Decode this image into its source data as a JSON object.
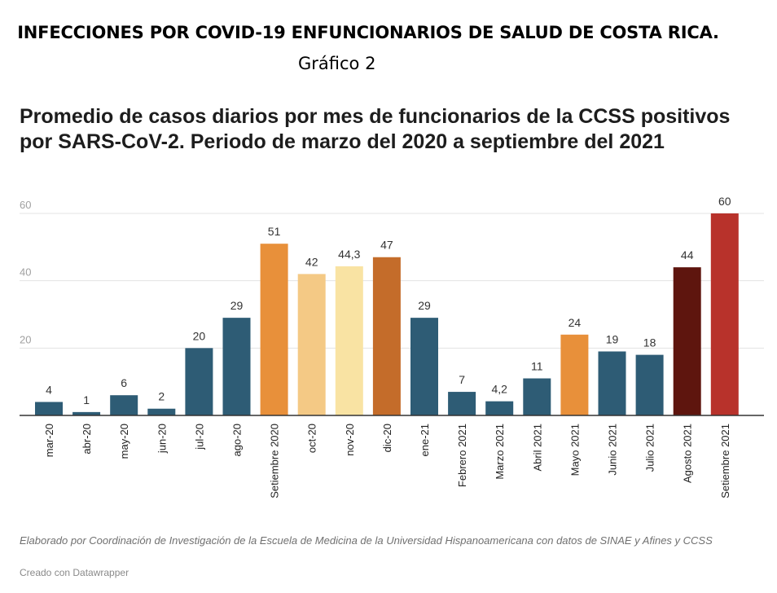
{
  "header": {
    "title": "INFECCIONES POR COVID-19 ENFUNCIONARIOS DE SALUD DE COSTA RICA.",
    "subtitle": "Gráfico 2"
  },
  "footer": {
    "notes": "Elaborado por Coordinación de Investigación de la Escuela de Medicina de la Universidad Hispanoamericana con datos de SINAE y Afines y CCSS",
    "credit": "Creado con Datawrapper"
  },
  "chart_data": {
    "type": "bar",
    "title": "Promedio de casos diarios por mes de funcionarios de la CCSS positivos por SARS-CoV-2. Periodo de marzo del 2020 a septiembre del 2021",
    "xlabel": "",
    "ylabel": "",
    "ylim": [
      0,
      60
    ],
    "yticks": [
      20,
      40,
      60
    ],
    "grid": true,
    "categories": [
      "mar-20",
      "abr-20",
      "may-20",
      "jun-20",
      "jul-20",
      "ago-20",
      "Setiembre 2020",
      "oct-20",
      "nov-20",
      "dic-20",
      "ene-21",
      "Febrero 2021",
      "Marzo 2021",
      "Abril 2021",
      "Mayo 2021",
      "Junio 2021",
      "Julio 2021",
      "Agosto 2021",
      "Setiembre 2021"
    ],
    "values": [
      4,
      1,
      6,
      2,
      20,
      29,
      51,
      42,
      44.3,
      47,
      29,
      7,
      4.2,
      11,
      24,
      19,
      18,
      44,
      60
    ],
    "value_labels": [
      "4",
      "1",
      "6",
      "2",
      "20",
      "29",
      "51",
      "42",
      "44,3",
      "47",
      "29",
      "7",
      "4,2",
      "11",
      "24",
      "19",
      "18",
      "44",
      "60"
    ],
    "colors": [
      "#2e5c75",
      "#2e5c75",
      "#2e5c75",
      "#2e5c75",
      "#2e5c75",
      "#2e5c75",
      "#e8903a",
      "#f4c985",
      "#f9e3a3",
      "#c46c2a",
      "#2e5c75",
      "#2e5c75",
      "#2e5c75",
      "#2e5c75",
      "#e8903a",
      "#2e5c75",
      "#2e5c75",
      "#5e150e",
      "#b8322b"
    ]
  }
}
